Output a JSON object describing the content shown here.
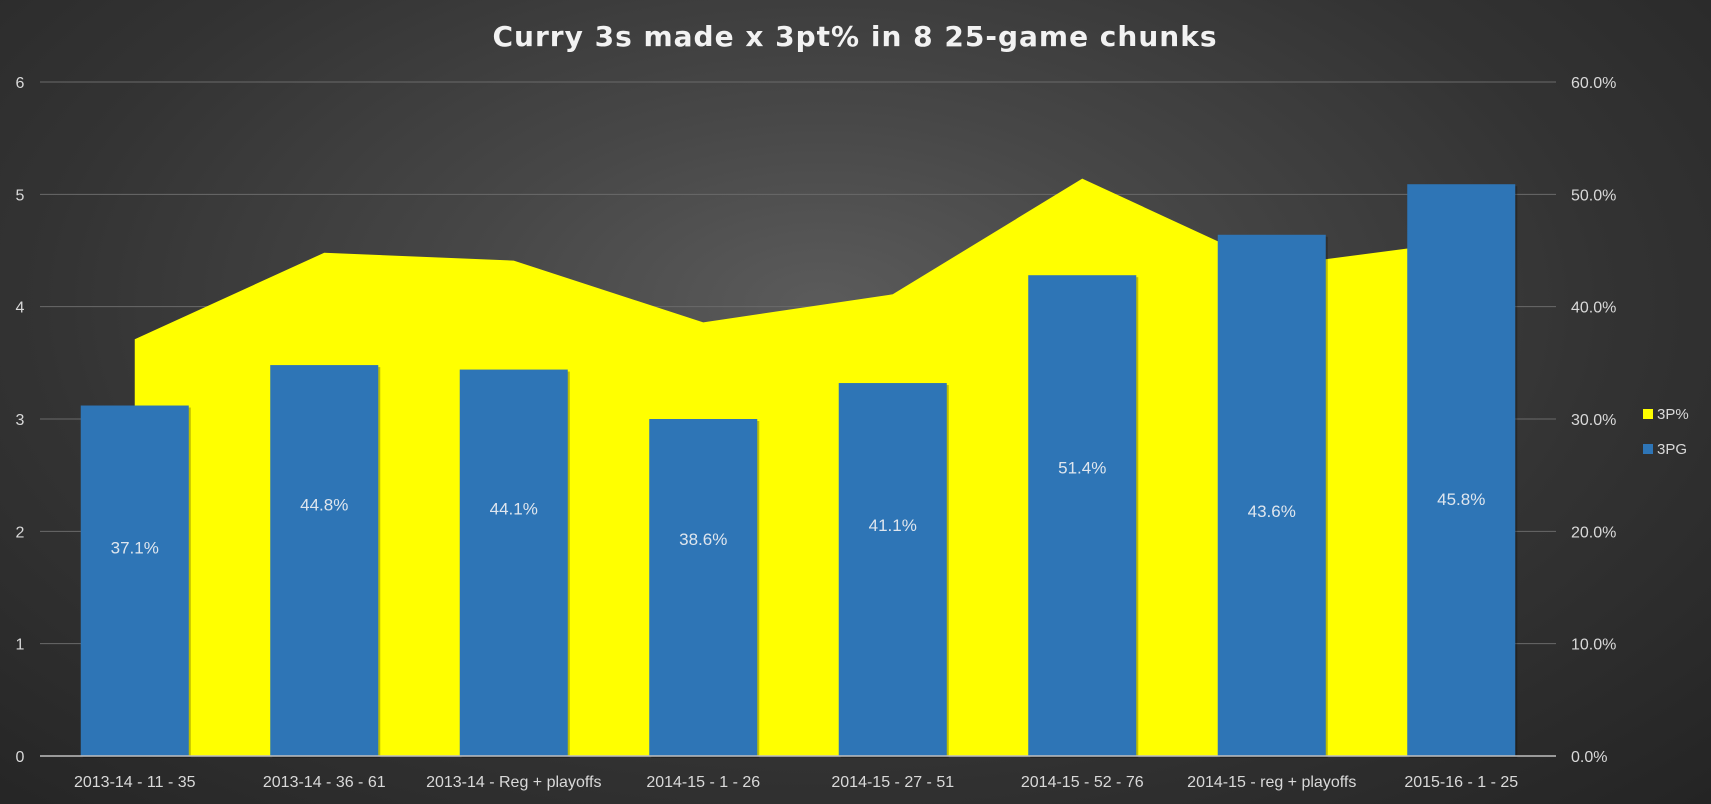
{
  "chart_data": {
    "type": "bar",
    "title": "Curry 3s made x 3pt% in 8 25-game chunks",
    "categories": [
      "2013-14 - 11 - 35",
      "2013-14 - 36 - 61",
      "2013-14 - Reg + playoffs",
      "2014-15 - 1 - 26",
      "2014-15 - 27 - 51",
      "2014-15 - 52 - 76",
      "2014-15 - reg + playoffs",
      "2015-16 - 1 - 25"
    ],
    "series": [
      {
        "name": "3PG",
        "chart": "bar",
        "axis": "left",
        "color": "#2e75b6",
        "values": [
          3.12,
          3.48,
          3.44,
          3.0,
          3.32,
          4.28,
          4.64,
          5.09
        ]
      },
      {
        "name": "3P%",
        "chart": "area",
        "axis": "right",
        "color": "#ffff00",
        "values": [
          37.1,
          44.8,
          44.1,
          38.6,
          41.1,
          51.4,
          43.6,
          45.8
        ],
        "data_labels": [
          "37.1%",
          "44.8%",
          "44.1%",
          "38.6%",
          "41.1%",
          "51.4%",
          "43.6%",
          "45.8%"
        ]
      }
    ],
    "y_left": {
      "ticks": [
        "0",
        "1",
        "2",
        "3",
        "4",
        "5",
        "6"
      ],
      "ylim": [
        0,
        6
      ]
    },
    "y_right": {
      "ticks": [
        "0.0%",
        "10.0%",
        "20.0%",
        "30.0%",
        "40.0%",
        "50.0%",
        "60.0%"
      ],
      "ylim": [
        0,
        60
      ]
    },
    "grid": true,
    "legend": {
      "position": "right",
      "entries": [
        "3P%",
        "3PG"
      ]
    }
  }
}
